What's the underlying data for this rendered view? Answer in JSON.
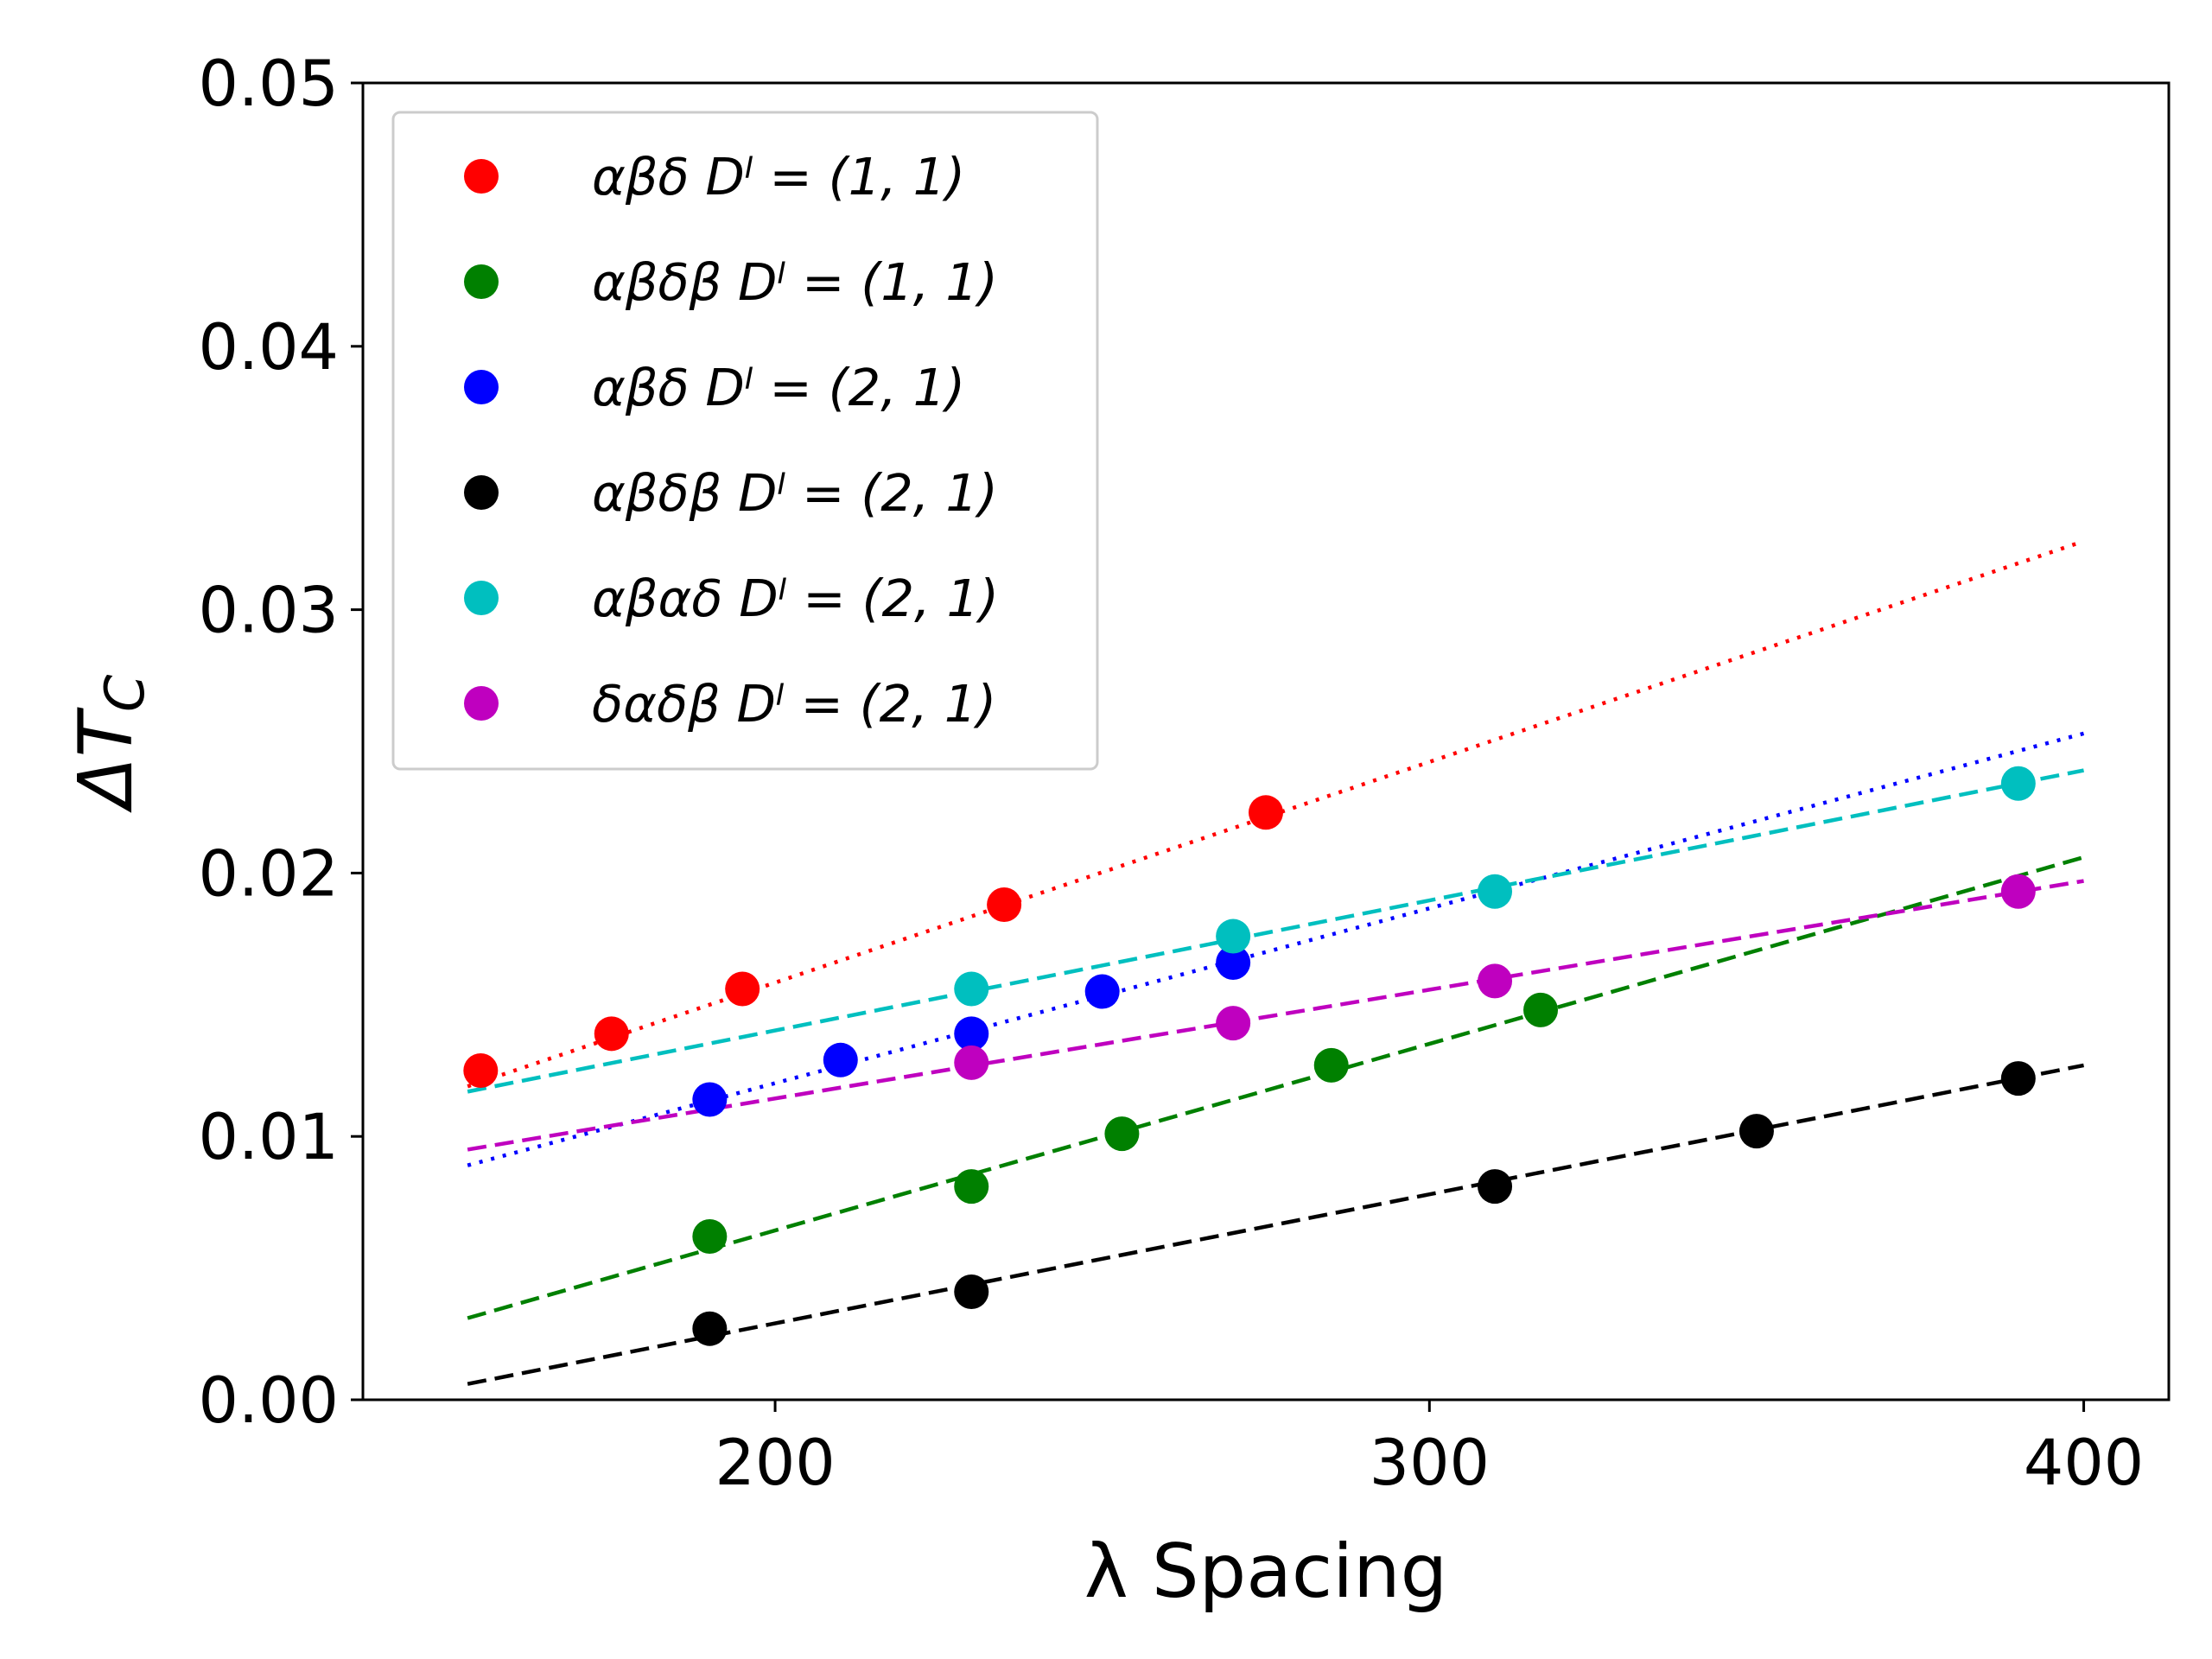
{
  "chart_data": {
    "type": "scatter",
    "xlabel": "λ Spacing",
    "ylabel": "ΔT_C",
    "ylabel_main": "ΔT",
    "ylabel_sub": "C",
    "xlim": [
      137,
      413
    ],
    "ylim": [
      0.0,
      0.05
    ],
    "xticks": [
      200,
      300,
      400
    ],
    "xtick_labels": [
      "200",
      "300",
      "400"
    ],
    "yticks": [
      0.0,
      0.01,
      0.02,
      0.03,
      0.04,
      0.05
    ],
    "ytick_labels": [
      "0.00",
      "0.01",
      "0.02",
      "0.03",
      "0.04",
      "0.05"
    ],
    "grid": false,
    "legend_position": "top-left",
    "series": [
      {
        "name": "αβδ D^l = (1, 1)",
        "legend_text": "αβδ Dˡ = (1, 1)",
        "color": "#ff0000",
        "fit_style": "dotted",
        "x": [
          155,
          175,
          195,
          235,
          275
        ],
        "y": [
          0.0125,
          0.0139,
          0.0156,
          0.0188,
          0.0223
        ],
        "fit_x": [
          153,
          400
        ],
        "fit_y": [
          0.0119,
          0.0326
        ]
      },
      {
        "name": "αβδβ D^l = (1, 1)",
        "legend_text": "αβδβ Dˡ = (1, 1)",
        "color": "#008000",
        "fit_style": "dashed",
        "x": [
          190,
          230,
          253,
          285,
          317
        ],
        "y": [
          0.0062,
          0.0081,
          0.0101,
          0.0127,
          0.0148
        ],
        "fit_x": [
          153,
          400
        ],
        "fit_y": [
          0.0031,
          0.0206
        ]
      },
      {
        "name": "αβδ D^l = (2, 1)",
        "legend_text": "αβδ Dˡ = (2, 1)",
        "color": "#0000ff",
        "fit_style": "dotted",
        "x": [
          190,
          210,
          230,
          250,
          270
        ],
        "y": [
          0.0114,
          0.0129,
          0.0139,
          0.0155,
          0.0166
        ],
        "fit_x": [
          153,
          400
        ],
        "fit_y": [
          0.0089,
          0.0253
        ]
      },
      {
        "name": "αβδβ D^l = (2, 1)",
        "legend_text": "αβδβ Dˡ = (2, 1)",
        "color": "#000000",
        "fit_style": "dashed",
        "x": [
          190,
          230,
          310,
          350,
          390
        ],
        "y": [
          0.0027,
          0.0041,
          0.0081,
          0.0102,
          0.0122
        ],
        "fit_x": [
          153,
          400
        ],
        "fit_y": [
          0.0006,
          0.0127
        ]
      },
      {
        "name": "αβαδ D^l = (2, 1)",
        "legend_text": "αβαδ Dˡ = (2, 1)",
        "color": "#00bfbf",
        "fit_style": "dashed",
        "x": [
          230,
          270,
          310,
          390
        ],
        "y": [
          0.0156,
          0.0176,
          0.0193,
          0.0234
        ],
        "fit_x": [
          153,
          400
        ],
        "fit_y": [
          0.0117,
          0.0239
        ]
      },
      {
        "name": "δαδβ D^l = (2, 1)",
        "legend_text": "δαδβ Dˡ = (2, 1)",
        "color": "#bf00bf",
        "fit_style": "dashed",
        "x": [
          230,
          270,
          310,
          390
        ],
        "y": [
          0.0128,
          0.0143,
          0.0159,
          0.0193
        ],
        "fit_x": [
          153,
          400
        ],
        "fit_y": [
          0.0095,
          0.0197
        ]
      }
    ]
  }
}
